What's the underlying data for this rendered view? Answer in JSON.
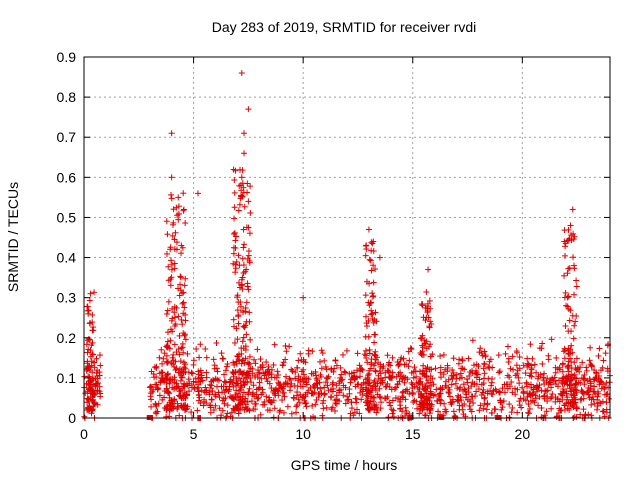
{
  "chart_data": {
    "type": "scatter",
    "title": "Day 283 of 2019, SRMTID for receiver rvdi",
    "xlabel": "GPS time / hours",
    "ylabel": "SRMTID / TECUs",
    "xlim": [
      0,
      24
    ],
    "ylim": [
      0,
      0.9
    ],
    "xticks": [
      0,
      5,
      10,
      15,
      20
    ],
    "yticks": [
      0,
      0.1,
      0.2,
      0.3,
      0.4,
      0.5,
      0.6,
      0.7,
      0.8,
      0.9
    ],
    "grid": true,
    "marker": "+",
    "color": "#e00000",
    "gap_markers_x": [
      3.0,
      14.9,
      16.3,
      18.9
    ],
    "notable_points": [
      {
        "x": 7.2,
        "y": 0.86
      },
      {
        "x": 7.5,
        "y": 0.77
      },
      {
        "x": 4.0,
        "y": 0.71
      },
      {
        "x": 7.3,
        "y": 0.71
      },
      {
        "x": 7.3,
        "y": 0.66
      },
      {
        "x": 7.2,
        "y": 0.6
      },
      {
        "x": 4.0,
        "y": 0.6
      },
      {
        "x": 5.2,
        "y": 0.56
      },
      {
        "x": 4.3,
        "y": 0.55
      },
      {
        "x": 7.5,
        "y": 0.54
      },
      {
        "x": 22.3,
        "y": 0.52
      },
      {
        "x": 22.2,
        "y": 0.48
      },
      {
        "x": 13.0,
        "y": 0.47
      },
      {
        "x": 13.2,
        "y": 0.44
      },
      {
        "x": 13.5,
        "y": 0.4
      },
      {
        "x": 15.7,
        "y": 0.37
      },
      {
        "x": 0.3,
        "y": 0.31
      },
      {
        "x": 10.0,
        "y": 0.3
      }
    ],
    "bursts": [
      {
        "center": 0.3,
        "width": 0.35,
        "peak": 0.3,
        "count": 70
      },
      {
        "center": 4.2,
        "width": 0.9,
        "peak": 0.55,
        "count": 150
      },
      {
        "center": 7.2,
        "width": 0.8,
        "peak": 0.6,
        "count": 160
      },
      {
        "center": 13.1,
        "width": 0.5,
        "peak": 0.42,
        "count": 90
      },
      {
        "center": 15.6,
        "width": 0.5,
        "peak": 0.3,
        "count": 80
      },
      {
        "center": 22.2,
        "width": 0.6,
        "peak": 0.45,
        "count": 100
      }
    ],
    "background_segments": [
      {
        "x0": 0.0,
        "x1": 0.75,
        "level": 0.08,
        "count": 60
      },
      {
        "x0": 3.0,
        "x1": 24.0,
        "level": 0.075,
        "count": 1400
      }
    ]
  }
}
